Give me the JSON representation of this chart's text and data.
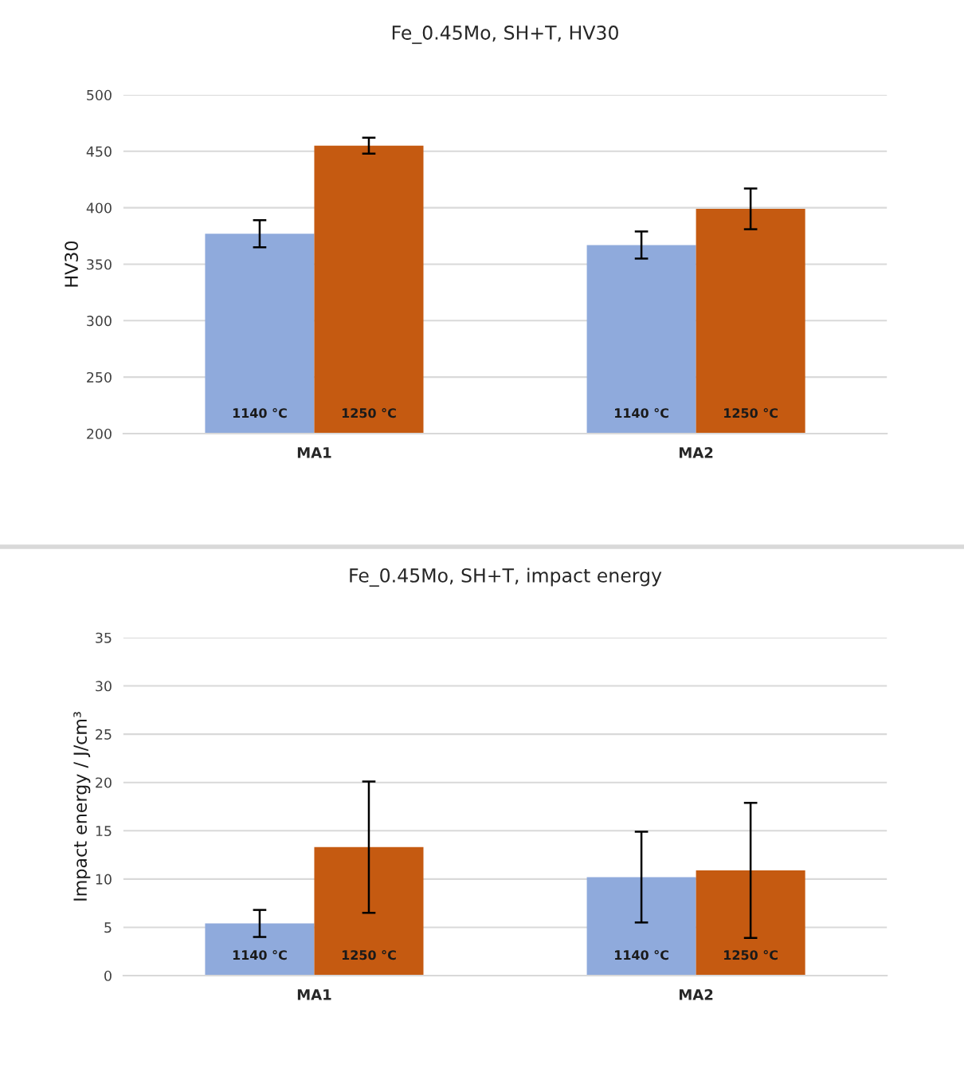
{
  "chart_data": [
    {
      "type": "bar",
      "title": "Fe_0.45Mo, SH+T, HV30",
      "ylabel": "HV30",
      "categories": [
        "MA1",
        "MA2"
      ],
      "series": [
        {
          "name": "1140 °C",
          "color": "#8faadc",
          "values": [
            377,
            367
          ],
          "errors": [
            12,
            12
          ]
        },
        {
          "name": "1250 °C",
          "color": "#c55a11",
          "values": [
            455,
            399
          ],
          "errors": [
            7,
            18
          ]
        }
      ],
      "ylim": [
        200,
        500
      ],
      "yticks": [
        200,
        250,
        300,
        350,
        400,
        450,
        500
      ],
      "grid": "y",
      "legend": false
    },
    {
      "type": "bar",
      "title": "Fe_0.45Mo, SH+T, impact energy",
      "ylabel": "Impact energy / J/cm³",
      "categories": [
        "MA1",
        "MA2"
      ],
      "series": [
        {
          "name": "1140 °C",
          "color": "#8faadc",
          "values": [
            5.4,
            10.2
          ],
          "errors": [
            1.4,
            4.7
          ]
        },
        {
          "name": "1250 °C",
          "color": "#c55a11",
          "values": [
            13.3,
            10.9
          ],
          "errors": [
            6.8,
            7.0
          ]
        }
      ],
      "ylim": [
        0,
        35
      ],
      "yticks": [
        0,
        5,
        10,
        15,
        20,
        25,
        30,
        35
      ],
      "grid": "y",
      "legend": false
    }
  ]
}
